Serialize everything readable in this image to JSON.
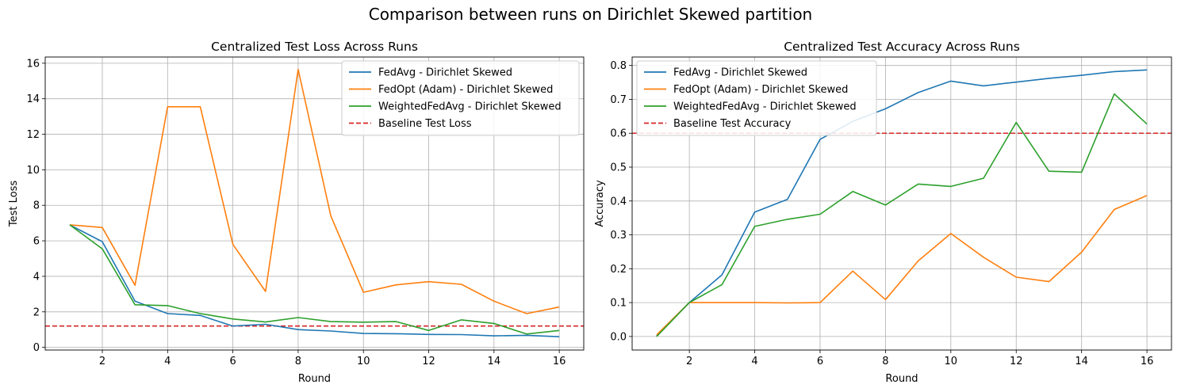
{
  "suptitle": "Comparison between runs on Dirichlet Skewed partition",
  "colors": {
    "fedavg": "#1f77b4",
    "fedopt": "#ff7f0e",
    "weighted": "#2ca02c",
    "baseline": "#d62728",
    "grid": "#b0b0b0"
  },
  "chart_data": [
    {
      "type": "line",
      "title": "Centralized Test Loss Across Runs",
      "xlabel": "Round",
      "ylabel": "Test Loss",
      "grid": true,
      "legend_position": "top-right",
      "xlim": [
        0.25,
        16.75
      ],
      "ylim": [
        -0.15,
        16.35
      ],
      "xticks": [
        2,
        4,
        6,
        8,
        10,
        12,
        14,
        16
      ],
      "yticks": [
        0,
        2,
        4,
        6,
        8,
        10,
        12,
        14,
        16
      ],
      "x": [
        1,
        2,
        3,
        4,
        5,
        6,
        7,
        8,
        9,
        10,
        11,
        12,
        13,
        14,
        15,
        16
      ],
      "series": [
        {
          "name": "FedAvg - Dirichlet Skewed",
          "color": "#1f77b4",
          "values": [
            6.9,
            5.95,
            2.6,
            1.9,
            1.8,
            1.2,
            1.3,
            1.0,
            0.92,
            0.78,
            0.77,
            0.73,
            0.72,
            0.65,
            0.68,
            0.6
          ]
        },
        {
          "name": "FedOpt (Adam) - Dirichlet Skewed",
          "color": "#ff7f0e",
          "values": [
            6.9,
            6.75,
            3.5,
            13.55,
            13.55,
            5.8,
            3.15,
            15.65,
            7.4,
            3.1,
            3.52,
            3.7,
            3.55,
            2.6,
            1.9,
            2.27
          ]
        },
        {
          "name": "WeightedFedAvg - Dirichlet Skewed",
          "color": "#2ca02c",
          "values": [
            6.9,
            5.55,
            2.4,
            2.35,
            1.9,
            1.6,
            1.43,
            1.68,
            1.45,
            1.42,
            1.45,
            0.95,
            1.55,
            1.35,
            0.75,
            0.95
          ]
        }
      ],
      "baseline": {
        "name": "Baseline Test Loss",
        "value": 1.2,
        "color": "#d62728",
        "style": "dashed"
      }
    },
    {
      "type": "line",
      "title": "Centralized Test Accuracy Across Runs",
      "xlabel": "Round",
      "ylabel": "Accuracy",
      "grid": true,
      "legend_position": "top-left",
      "xlim": [
        0.25,
        16.75
      ],
      "ylim": [
        -0.04,
        0.825
      ],
      "xticks": [
        2,
        4,
        6,
        8,
        10,
        12,
        14,
        16
      ],
      "yticks": [
        0.0,
        0.1,
        0.2,
        0.3,
        0.4,
        0.5,
        0.6,
        0.7,
        0.8
      ],
      "ytick_labels": [
        "0.0",
        "0.1",
        "0.2",
        "0.3",
        "0.4",
        "0.5",
        "0.6",
        "0.7",
        "0.8"
      ],
      "x": [
        1,
        2,
        3,
        4,
        5,
        6,
        7,
        8,
        9,
        10,
        11,
        12,
        13,
        14,
        15,
        16
      ],
      "series": [
        {
          "name": "FedAvg - Dirichlet Skewed",
          "color": "#1f77b4",
          "values": [
            0.002,
            0.1,
            0.182,
            0.367,
            0.405,
            0.582,
            0.635,
            0.672,
            0.72,
            0.754,
            0.74,
            0.751,
            0.762,
            0.771,
            0.782,
            0.787
          ]
        },
        {
          "name": "FedOpt (Adam) - Dirichlet Skewed",
          "color": "#ff7f0e",
          "values": [
            0.005,
            0.1,
            0.1,
            0.1,
            0.099,
            0.1,
            0.193,
            0.109,
            0.223,
            0.304,
            0.234,
            0.175,
            0.162,
            0.249,
            0.375,
            0.416
          ]
        },
        {
          "name": "WeightedFedAvg - Dirichlet Skewed",
          "color": "#2ca02c",
          "values": [
            0.0,
            0.1,
            0.153,
            0.325,
            0.346,
            0.361,
            0.428,
            0.388,
            0.45,
            0.443,
            0.467,
            0.632,
            0.488,
            0.485,
            0.716,
            0.627
          ]
        }
      ],
      "baseline": {
        "name": "Baseline Test Accuracy",
        "value": 0.6,
        "color": "#d62728",
        "style": "dashed"
      }
    }
  ]
}
